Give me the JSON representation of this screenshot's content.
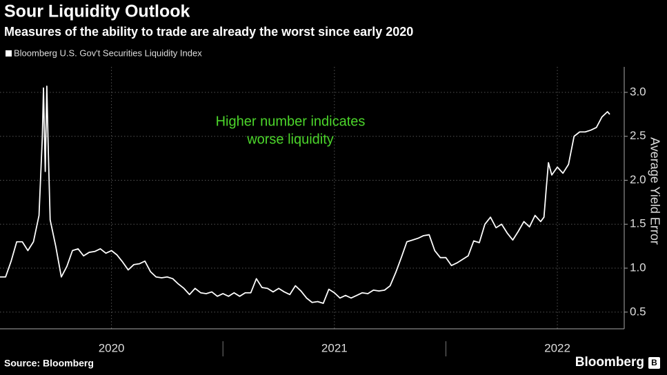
{
  "chart_data": {
    "type": "line",
    "title": "Sour Liquidity Outlook",
    "subtitle": "Measures of the ability to trade are already the worst since early 2020",
    "y_axis_label": "Average Yield Error",
    "annotation": [
      "Higher number indicates",
      "worse liquidity"
    ],
    "annotation_color": "#4cd62b",
    "source": "Source: Bloomberg",
    "brand": "Bloomberg",
    "grid": true,
    "x": [
      2020.0,
      2020.025,
      2020.05,
      2020.075,
      2020.1,
      2020.125,
      2020.15,
      2020.175,
      2020.19,
      2020.195,
      2020.203,
      2020.21,
      2020.217,
      2020.225,
      2020.25,
      2020.275,
      2020.3,
      2020.325,
      2020.35,
      2020.375,
      2020.4,
      2020.425,
      2020.45,
      2020.475,
      2020.5,
      2020.525,
      2020.55,
      2020.575,
      2020.6,
      2020.625,
      2020.65,
      2020.675,
      2020.7,
      2020.725,
      2020.75,
      2020.775,
      2020.8,
      2020.825,
      2020.85,
      2020.875,
      2020.9,
      2020.925,
      2020.95,
      2020.975,
      2021.0,
      2021.025,
      2021.05,
      2021.075,
      2021.1,
      2021.125,
      2021.15,
      2021.175,
      2021.2,
      2021.225,
      2021.25,
      2021.275,
      2021.3,
      2021.325,
      2021.35,
      2021.375,
      2021.4,
      2021.425,
      2021.45,
      2021.475,
      2021.5,
      2021.525,
      2021.55,
      2021.575,
      2021.6,
      2021.625,
      2021.65,
      2021.675,
      2021.7,
      2021.725,
      2021.75,
      2021.775,
      2021.8,
      2021.825,
      2021.85,
      2021.875,
      2021.9,
      2021.925,
      2021.95,
      2021.975,
      2022.0,
      2022.025,
      2022.05,
      2022.075,
      2022.1,
      2022.125,
      2022.15,
      2022.175,
      2022.2,
      2022.225,
      2022.25,
      2022.275,
      2022.3,
      2022.325,
      2022.35,
      2022.375,
      2022.4,
      2022.425,
      2022.44,
      2022.45,
      2022.46,
      2022.475,
      2022.5,
      2022.525,
      2022.55,
      2022.575,
      2022.6,
      2022.625,
      2022.65,
      2022.675,
      2022.7,
      2022.725,
      2022.735
    ],
    "series": [
      {
        "name": "Bloomberg U.S. Gov't Securities Liquidity Index",
        "color": "#ffffff",
        "values": [
          0.9,
          0.9,
          1.08,
          1.3,
          1.3,
          1.2,
          1.3,
          1.6,
          2.5,
          3.05,
          2.1,
          3.07,
          2.3,
          1.55,
          1.25,
          0.9,
          1.02,
          1.2,
          1.22,
          1.14,
          1.18,
          1.19,
          1.22,
          1.17,
          1.2,
          1.15,
          1.07,
          0.98,
          1.04,
          1.05,
          1.08,
          0.96,
          0.9,
          0.89,
          0.9,
          0.88,
          0.82,
          0.77,
          0.7,
          0.77,
          0.72,
          0.71,
          0.73,
          0.68,
          0.71,
          0.68,
          0.72,
          0.68,
          0.72,
          0.72,
          0.88,
          0.78,
          0.77,
          0.73,
          0.77,
          0.73,
          0.7,
          0.8,
          0.74,
          0.66,
          0.61,
          0.62,
          0.6,
          0.76,
          0.72,
          0.66,
          0.69,
          0.66,
          0.69,
          0.72,
          0.71,
          0.75,
          0.74,
          0.75,
          0.8,
          0.95,
          1.12,
          1.3,
          1.32,
          1.34,
          1.37,
          1.38,
          1.2,
          1.12,
          1.12,
          1.03,
          1.06,
          1.1,
          1.14,
          1.31,
          1.29,
          1.5,
          1.58,
          1.46,
          1.5,
          1.4,
          1.32,
          1.42,
          1.53,
          1.47,
          1.6,
          1.53,
          1.58,
          1.9,
          2.2,
          2.06,
          2.15,
          2.08,
          2.18,
          2.5,
          2.55,
          2.55,
          2.57,
          2.6,
          2.72,
          2.78,
          2.75
        ]
      }
    ],
    "xlim": [
      2020,
      2022.8
    ],
    "xticks": [
      {
        "value": 2020.5,
        "label": "2020"
      },
      {
        "value": 2021.5,
        "label": "2021"
      },
      {
        "value": 2022.5,
        "label": "2022"
      }
    ],
    "ylim": [
      0.31,
      3.29
    ],
    "yticks": [
      0.5,
      {
        "value": 1,
        "label": "1.0"
      },
      1.5,
      {
        "value": 2,
        "label": "2.0"
      },
      2.5,
      {
        "value": 3,
        "label": "3.0"
      }
    ]
  }
}
